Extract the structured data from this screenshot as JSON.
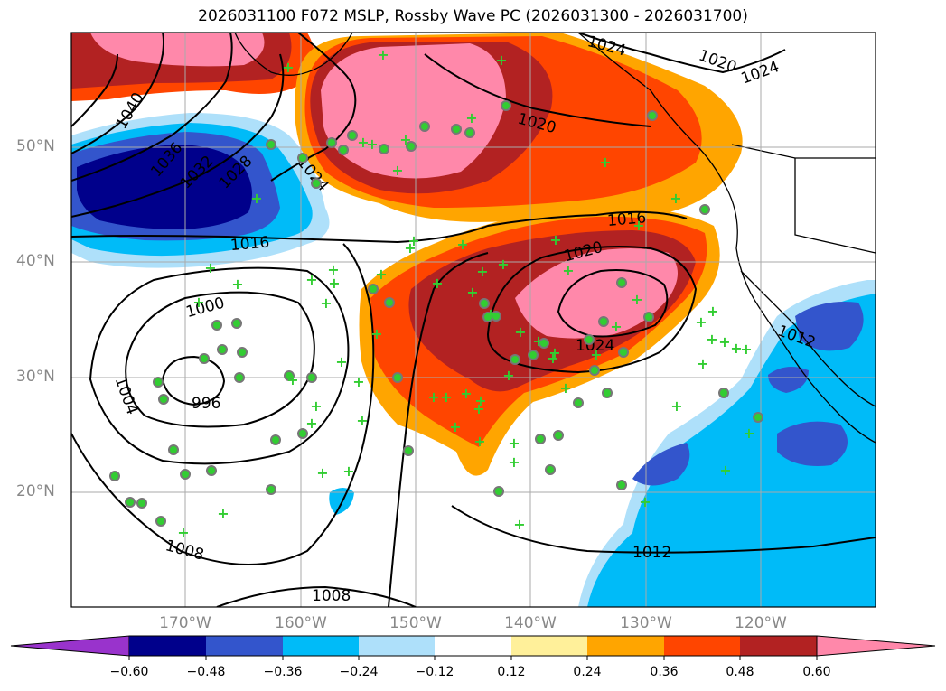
{
  "title": "2026031100 F072 MSLP, Rossby Wave PC (2026031300 - 2026031700)",
  "lat_labels": [
    "50°N",
    "40°N",
    "30°N",
    "20°N"
  ],
  "lon_labels": [
    "170°W",
    "160°W",
    "150°W",
    "140°W",
    "130°W",
    "120°W"
  ],
  "contour_labels": [
    "1040",
    "1036",
    "1032",
    "1028",
    "1024",
    "1020",
    "1016",
    "1000",
    "996",
    "1004",
    "1008",
    "1008",
    "1012",
    "1012",
    "1016",
    "1020",
    "1024",
    "1024",
    "1020",
    "1024"
  ],
  "colorbar": {
    "tick_labels": [
      "−0.60",
      "−0.48",
      "−0.36",
      "−0.24",
      "−0.12",
      "0.12",
      "0.24",
      "0.36",
      "0.48",
      "0.60"
    ],
    "colors": [
      "#9933cc",
      "#00008b",
      "#3355cc",
      "#00bbf8",
      "#aee0fa",
      "#ffffff",
      "#fff09a",
      "#ffa500",
      "#ff4500",
      "#b22222",
      "#ff88aa"
    ]
  }
}
